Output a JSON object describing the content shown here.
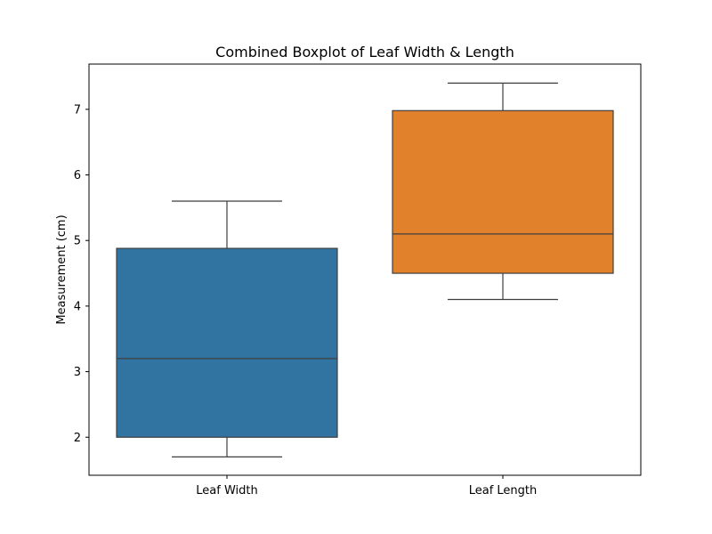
{
  "chart_data": {
    "type": "box",
    "title": "Combined Boxplot of Leaf Width & Length",
    "xlabel": "",
    "ylabel": "Measurement (cm)",
    "ylim": [
      1.42,
      7.69
    ],
    "yticks": [
      2,
      3,
      4,
      5,
      6,
      7
    ],
    "grid": false,
    "categories": [
      "Leaf Width",
      "Leaf Length"
    ],
    "boxes": [
      {
        "category": "Leaf Width",
        "color": "#3274a1",
        "whisker_low": 1.7,
        "q1": 2.0,
        "median": 3.2,
        "q3": 4.88,
        "whisker_high": 5.6
      },
      {
        "category": "Leaf Length",
        "color": "#e1812c",
        "whisker_low": 4.1,
        "q1": 4.5,
        "median": 5.1,
        "q3": 6.98,
        "whisker_high": 7.4
      }
    ]
  }
}
